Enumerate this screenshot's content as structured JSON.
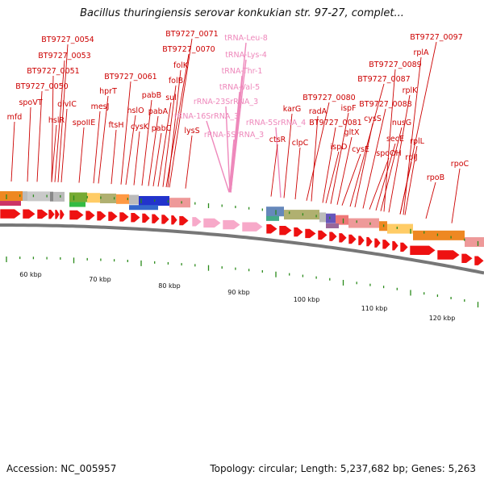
{
  "title": "Bacillus thuringiensis serovar konkukian str. 97-27, complet...",
  "footer": {
    "accession": "Accession: NC_005957",
    "summary": "Topology: circular; Length: 5,237,682 bp; Genes: 5,263"
  },
  "colors": {
    "gene_label": "#cc0000",
    "rna_label": "#ee88bb",
    "cds_arrow": "#ee1111",
    "rna_arrow": "#f7a9c9",
    "tick": "#2a8a1a",
    "backbone": "#888888"
  },
  "scale_labels": [
    "60 kbp",
    "70 kbp",
    "80 kbp",
    "90 kbp",
    "100 kbp",
    "110 kbp",
    "120 kbp"
  ],
  "gene_labels": [
    {
      "text": "BT9727_0054",
      "type": "cds"
    },
    {
      "text": "BT9727_0053",
      "type": "cds"
    },
    {
      "text": "BT9727_0051",
      "type": "cds"
    },
    {
      "text": "BT9727_0050",
      "type": "cds"
    },
    {
      "text": "spoVT",
      "type": "cds"
    },
    {
      "text": "mfd",
      "type": "cds"
    },
    {
      "text": "divIC",
      "type": "cds"
    },
    {
      "text": "hslR",
      "type": "cds"
    },
    {
      "text": "spoIIE",
      "type": "cds"
    },
    {
      "text": "hprT",
      "type": "cds"
    },
    {
      "text": "mesJ",
      "type": "cds"
    },
    {
      "text": "ftsH",
      "type": "cds"
    },
    {
      "text": "BT9727_0061",
      "type": "cds"
    },
    {
      "text": "hslO",
      "type": "cds"
    },
    {
      "text": "cysK",
      "type": "cds"
    },
    {
      "text": "pabB",
      "type": "cds"
    },
    {
      "text": "pabA",
      "type": "cds"
    },
    {
      "text": "pabC",
      "type": "cds"
    },
    {
      "text": "sul",
      "type": "cds"
    },
    {
      "text": "folB",
      "type": "cds"
    },
    {
      "text": "folK",
      "type": "cds"
    },
    {
      "text": "BT9727_0071",
      "type": "cds"
    },
    {
      "text": "BT9727_0070",
      "type": "cds"
    },
    {
      "text": "lysS",
      "type": "cds"
    },
    {
      "text": "tRNA-Leu-8",
      "type": "rna"
    },
    {
      "text": "tRNA-Lys-4",
      "type": "rna"
    },
    {
      "text": "tRNA-Thr-1",
      "type": "rna"
    },
    {
      "text": "tRNA-Val-5",
      "type": "rna"
    },
    {
      "text": "rRNA-23SrRNA_3",
      "type": "rna"
    },
    {
      "text": "rRNA-16SrRNA_3",
      "type": "rna"
    },
    {
      "text": "rRNA-5SrRNA_3",
      "type": "rna"
    },
    {
      "text": "rRNA-5SrRNA_4",
      "type": "rna"
    },
    {
      "text": "karG",
      "type": "cds"
    },
    {
      "text": "ctsR",
      "type": "cds"
    },
    {
      "text": "clpC",
      "type": "cds"
    },
    {
      "text": "BT9727_0080",
      "type": "cds"
    },
    {
      "text": "radA",
      "type": "cds"
    },
    {
      "text": "BT9727_0081",
      "type": "cds"
    },
    {
      "text": "ispF",
      "type": "cds"
    },
    {
      "text": "ispD",
      "type": "cds"
    },
    {
      "text": "gltX",
      "type": "cds"
    },
    {
      "text": "cysE",
      "type": "cds"
    },
    {
      "text": "BT9727_0087",
      "type": "cds"
    },
    {
      "text": "cysS",
      "type": "cds"
    },
    {
      "text": "BT9727_0088",
      "type": "cds"
    },
    {
      "text": "spoOH",
      "type": "cds"
    },
    {
      "text": "secE",
      "type": "cds"
    },
    {
      "text": "nusG",
      "type": "cds"
    },
    {
      "text": "BT9727_0089",
      "type": "cds"
    },
    {
      "text": "rplK",
      "type": "cds"
    },
    {
      "text": "BT9727_0097",
      "type": "cds"
    },
    {
      "text": "rplA",
      "type": "cds"
    },
    {
      "text": "rplJ",
      "type": "cds"
    },
    {
      "text": "rplL",
      "type": "cds"
    },
    {
      "text": "rpoB",
      "type": "cds"
    },
    {
      "text": "rpoC",
      "type": "cds"
    }
  ]
}
